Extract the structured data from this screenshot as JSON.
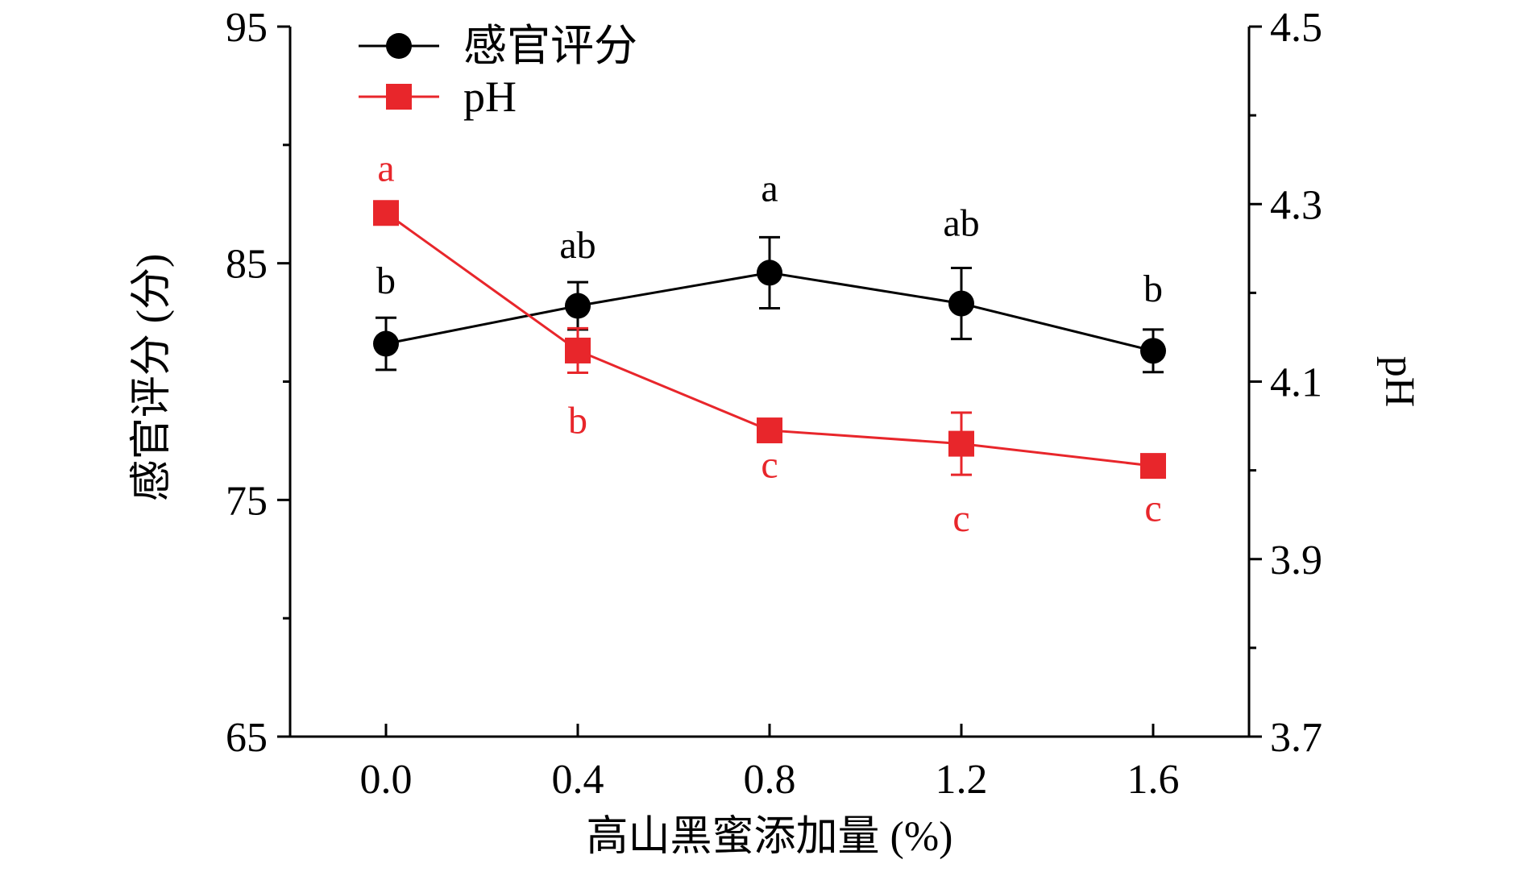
{
  "chart_data": {
    "type": "line",
    "title": "",
    "xlabel": "高山黑蜜添加量 (%)",
    "ylabel_left": "感官评分 (分)",
    "ylabel_right": "pH",
    "x": [
      0.0,
      0.4,
      0.8,
      1.2,
      1.6
    ],
    "x_tick_labels": [
      "0.0",
      "0.4",
      "0.8",
      "1.2",
      "1.6"
    ],
    "xlim": [
      -0.2,
      1.8
    ],
    "ylim_left": [
      65,
      95
    ],
    "y_left_ticks": [
      65,
      75,
      85,
      95
    ],
    "y_left_tick_labels": [
      "65",
      "75",
      "85",
      "95"
    ],
    "ylim_right": [
      3.7,
      4.5
    ],
    "y_right_ticks": [
      3.7,
      3.9,
      4.1,
      4.3,
      4.5
    ],
    "y_right_tick_labels": [
      "3.7",
      "3.9",
      "4.1",
      "4.3",
      "4.5"
    ],
    "grid": false,
    "legend_position": "top-left",
    "series": [
      {
        "name": "感官评分",
        "axis": "left",
        "color": "#000000",
        "marker": "circle",
        "values": [
          81.6,
          83.2,
          84.6,
          83.3,
          81.3
        ],
        "errors": [
          1.1,
          1.0,
          1.5,
          1.5,
          0.9
        ],
        "sig_labels": [
          "b",
          "ab",
          "a",
          "ab",
          "b"
        ],
        "sig_position": "above"
      },
      {
        "name": "pH",
        "axis": "right",
        "color": "#e8262b",
        "marker": "square",
        "values": [
          4.29,
          4.135,
          4.045,
          4.03,
          4.005
        ],
        "errors": [
          0.0,
          0.025,
          0.012,
          0.035,
          0.012
        ],
        "sig_labels": [
          "a",
          "b",
          "c",
          "c",
          "c"
        ],
        "sig_position": "mixed"
      }
    ]
  }
}
